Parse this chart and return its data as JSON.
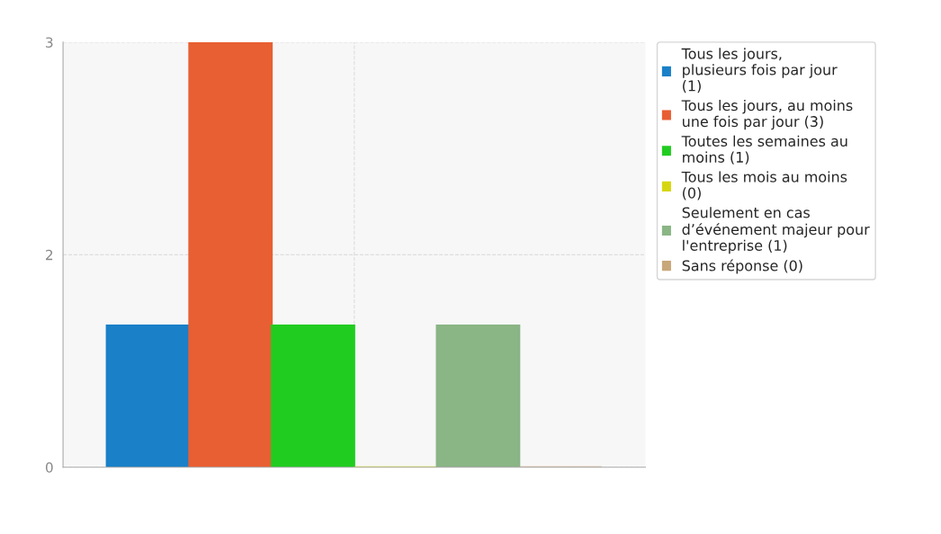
{
  "chart_data": {
    "type": "bar",
    "categories": [
      null
    ],
    "series": [
      {
        "name": "Tous les jours, plusieurs fois par jour (1)",
        "color": "#1a80c8",
        "values": [
          1
        ]
      },
      {
        "name": "Tous les jours, au moins une fois par jour (3)",
        "color": "#e85f33",
        "values": [
          3
        ]
      },
      {
        "name": "Toutes les semaines au moins (1)",
        "color": "#21cc21",
        "values": [
          1
        ]
      },
      {
        "name": "Tous les mois au moins (0)",
        "color": "#d6d60f",
        "values": [
          0
        ]
      },
      {
        "name": "Seulement en cas d’événement majeur pour l'entreprise (1)",
        "color": "#8ab585",
        "values": [
          1
        ]
      },
      {
        "name": "Sans réponse (0)",
        "color": "#c8a77a",
        "values": [
          0
        ]
      }
    ],
    "ylim": [
      0,
      3
    ],
    "yticks": [
      0,
      {
        "value": 1.5,
        "label": "2"
      },
      3
    ],
    "grid": true,
    "legend": "top right",
    "tick_labels": "y"
  }
}
